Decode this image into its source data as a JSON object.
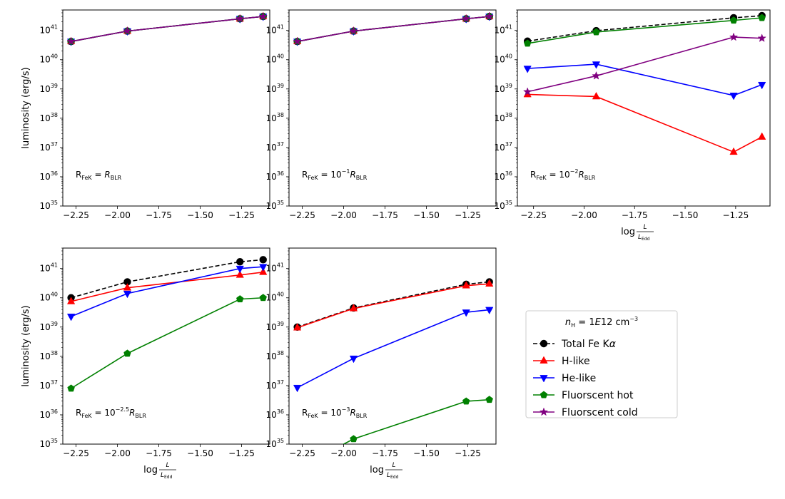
{
  "chart_data": {
    "type": "line",
    "x_ticks": [
      "−2.25",
      "−2.00",
      "−1.75",
      "−1.50",
      "−1.25"
    ],
    "y_scale": "log",
    "xlim": [
      -2.33,
      -1.08
    ],
    "ylim": [
      1e+35,
      5e+41
    ],
    "y_tick_exponents": [
      "35",
      "36",
      "37",
      "38",
      "39",
      "40",
      "41"
    ],
    "ylabel": "luminosity (erg/s)",
    "xlabel": "log L/L_Edd",
    "xlabel_parts": {
      "log": "log",
      "num": "L",
      "den": "L",
      "den_sub": "Edd"
    },
    "legend": {
      "title_parts": {
        "n": "n",
        "n_sub": "H",
        "eq": " = 1",
        "e": "E",
        "val": "12 cm",
        "sup": "−3"
      },
      "placement": "right of bottom row"
    },
    "series_styles": {
      "Total Fe Kα": {
        "color": "#000000",
        "marker": "circle",
        "dashed": true
      },
      "H-like": {
        "color": "#ff0000",
        "marker": "triangle-up",
        "dashed": false
      },
      "He-like": {
        "color": "#0000ff",
        "marker": "triangle-down",
        "dashed": false
      },
      "Fluorscent hot": {
        "color": "#008000",
        "marker": "pentagon",
        "dashed": false
      },
      "Fluorscent cold": {
        "color": "#800080",
        "marker": "star",
        "dashed": false
      }
    },
    "legend_order": [
      "Total Fe Kα",
      "H-like",
      "He-like",
      "Fluorscent hot",
      "Fluorscent cold"
    ],
    "legend_label_parts": {
      "Total Fe Kα": [
        "Total Fe K",
        "α"
      ],
      "H-like": [
        "H-like",
        ""
      ],
      "He-like": [
        "He-like",
        ""
      ],
      "Fluorscent hot": [
        "Fluorscent hot",
        ""
      ],
      "Fluorscent cold": [
        "Fluorscent cold",
        ""
      ]
    },
    "panels": [
      {
        "annotation": {
          "base": "R",
          "sub1": "FeK",
          "mid": " = ",
          "expo": "",
          "post": "R",
          "sub2": "BLR"
        },
        "show_ylabel": true,
        "show_xlabel": false,
        "series": [
          {
            "name": "Total Fe Kα",
            "x": [
              -2.28,
              -1.94,
              -1.26,
              -1.12
            ],
            "y": [
              4.2e+40,
              9.5e+40,
              2.5e+41,
              3e+41
            ]
          },
          {
            "name": "H-like",
            "x": [
              -2.28,
              -1.94,
              -1.26,
              -1.12
            ],
            "y": [
              4.2e+40,
              9.5e+40,
              2.5e+41,
              3e+41
            ]
          },
          {
            "name": "He-like",
            "x": [
              -2.28,
              -1.94,
              -1.26,
              -1.12
            ],
            "y": [
              4.2e+40,
              9.5e+40,
              2.5e+41,
              3e+41
            ]
          },
          {
            "name": "Fluorscent hot",
            "x": [
              -2.28,
              -1.94,
              -1.26,
              -1.12
            ],
            "y": [
              4.2e+40,
              9.5e+40,
              2.5e+41,
              3e+41
            ]
          },
          {
            "name": "Fluorscent cold",
            "x": [
              -2.28,
              -1.94,
              -1.26,
              -1.12
            ],
            "y": [
              4.2e+40,
              9.5e+40,
              2.5e+41,
              3e+41
            ]
          }
        ]
      },
      {
        "annotation": {
          "base": "R",
          "sub1": "FeK",
          "mid": " = 10",
          "expo": "−1",
          "post": "R",
          "sub2": "BLR"
        },
        "show_ylabel": false,
        "show_xlabel": false,
        "series": [
          {
            "name": "Total Fe Kα",
            "x": [
              -2.28,
              -1.94,
              -1.26,
              -1.12
            ],
            "y": [
              4.2e+40,
              9.5e+40,
              2.5e+41,
              3e+41
            ]
          },
          {
            "name": "H-like",
            "x": [
              -2.28,
              -1.94,
              -1.26,
              -1.12
            ],
            "y": [
              4.2e+40,
              9.5e+40,
              2.5e+41,
              3e+41
            ]
          },
          {
            "name": "He-like",
            "x": [
              -2.28,
              -1.94,
              -1.26,
              -1.12
            ],
            "y": [
              4.2e+40,
              9.5e+40,
              2.5e+41,
              3e+41
            ]
          },
          {
            "name": "Fluorscent hot",
            "x": [
              -2.28,
              -1.94,
              -1.26,
              -1.12
            ],
            "y": [
              4.2e+40,
              9.5e+40,
              2.5e+41,
              3e+41
            ]
          },
          {
            "name": "Fluorscent cold",
            "x": [
              -2.28,
              -1.94,
              -1.26,
              -1.12
            ],
            "y": [
              4.2e+40,
              9.5e+40,
              2.5e+41,
              3e+41
            ]
          }
        ]
      },
      {
        "annotation": {
          "base": "R",
          "sub1": "FeK",
          "mid": " = 10",
          "expo": "−2",
          "post": "R",
          "sub2": "BLR"
        },
        "show_ylabel": false,
        "show_xlabel": true,
        "series": [
          {
            "name": "Total Fe Kα",
            "x": [
              -2.28,
              -1.94,
              -1.26,
              -1.12
            ],
            "y": [
              4.3e+40,
              9.8e+40,
              2.7e+41,
              3.2e+41
            ]
          },
          {
            "name": "H-like",
            "x": [
              -2.28,
              -1.94,
              -1.26,
              -1.12
            ],
            "y": [
              6.5e+38,
              5.5e+38,
              7e+36,
              2.3e+37
            ]
          },
          {
            "name": "He-like",
            "x": [
              -2.28,
              -1.94,
              -1.26,
              -1.12
            ],
            "y": [
              5e+39,
              7e+39,
              6e+38,
              1.4e+39
            ]
          },
          {
            "name": "Fluorscent hot",
            "x": [
              -2.28,
              -1.94,
              -1.26,
              -1.12
            ],
            "y": [
              3.6e+40,
              8.8e+40,
              2.2e+41,
              2.7e+41
            ]
          },
          {
            "name": "Fluorscent cold",
            "x": [
              -2.28,
              -1.94,
              -1.26,
              -1.12
            ],
            "y": [
              8e+38,
              2.8e+39,
              5.9e+40,
              5.4e+40
            ]
          }
        ]
      },
      {
        "annotation": {
          "base": "R",
          "sub1": "FeK",
          "mid": " = 10",
          "expo": "−2.5",
          "post": "R",
          "sub2": "BLR"
        },
        "show_ylabel": true,
        "show_xlabel": true,
        "series": [
          {
            "name": "Total Fe Kα",
            "x": [
              -2.28,
              -1.94,
              -1.26,
              -1.12
            ],
            "y": [
              1e+40,
              3.5e+40,
              1.7e+41,
              2e+41
            ]
          },
          {
            "name": "H-like",
            "x": [
              -2.28,
              -1.94,
              -1.26,
              -1.12
            ],
            "y": [
              7.5e+39,
              2.2e+40,
              6e+40,
              7.5e+40
            ]
          },
          {
            "name": "He-like",
            "x": [
              -2.28,
              -1.94,
              -1.26,
              -1.12
            ],
            "y": [
              2.3e+39,
              1.4e+40,
              1e+41,
              1.15e+41
            ]
          },
          {
            "name": "Fluorscent hot",
            "x": [
              -2.28,
              -1.94,
              -1.26,
              -1.12
            ],
            "y": [
              8e+36,
              1.25e+38,
              9e+39,
              1e+40
            ]
          }
        ]
      },
      {
        "annotation": {
          "base": "R",
          "sub1": "FeK",
          "mid": " = 10",
          "expo": "−3",
          "post": "R",
          "sub2": "BLR"
        },
        "show_ylabel": false,
        "show_xlabel": true,
        "series": [
          {
            "name": "Total Fe Kα",
            "x": [
              -2.28,
              -1.94,
              -1.26,
              -1.12
            ],
            "y": [
              1e+39,
              4.5e+39,
              2.9e+40,
              3.5e+40
            ]
          },
          {
            "name": "H-like",
            "x": [
              -2.28,
              -1.94,
              -1.26,
              -1.12
            ],
            "y": [
              9.5e+38,
              4.3e+39,
              2.6e+40,
              3e+40
            ]
          },
          {
            "name": "He-like",
            "x": [
              -2.28,
              -1.94,
              -1.26,
              -1.12
            ],
            "y": [
              8.5e+36,
              8.5e+37,
              3.2e+39,
              3.9e+39
            ]
          },
          {
            "name": "Fluorscent hot",
            "x": [
              -2.28,
              -1.94,
              -1.26,
              -1.12
            ],
            "y": [
              1.5e+34,
              1.5e+35,
              2.9e+36,
              3.3e+36
            ]
          }
        ]
      }
    ]
  }
}
